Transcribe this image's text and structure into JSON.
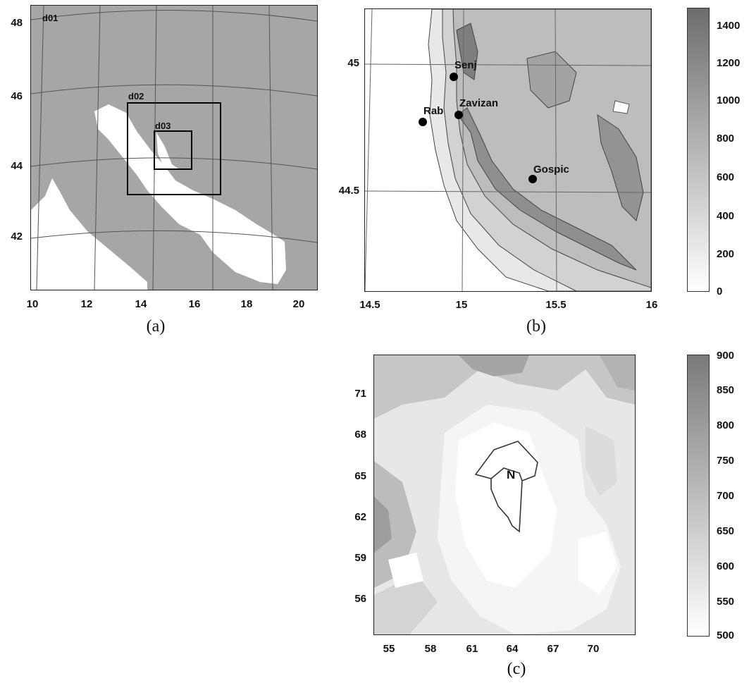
{
  "panel_a": {
    "caption": "(a)",
    "y_ticks": [
      "48",
      "46",
      "44",
      "42"
    ],
    "x_ticks": [
      "10",
      "12",
      "14",
      "16",
      "18",
      "20"
    ],
    "domains": {
      "outer": "d01",
      "middle": "d02",
      "inner": "d03"
    },
    "colors": {
      "land": "#a6a6a6",
      "sea": "#ffffff"
    }
  },
  "panel_b": {
    "caption": "(b)",
    "y_ticks": [
      "45",
      "44.5"
    ],
    "x_ticks": [
      "14.5",
      "15",
      "15.5",
      "16"
    ],
    "cities": [
      {
        "name": "Senj"
      },
      {
        "name": "Zavizan"
      },
      {
        "name": "Rab"
      },
      {
        "name": "Gospic"
      }
    ],
    "colorbar_ticks": [
      "1400",
      "1200",
      "1000",
      "800",
      "600",
      "400",
      "200",
      "0"
    ],
    "colorbar_colors": {
      "top": "#6d6d6d",
      "bottom": "#ffffff"
    }
  },
  "panel_c": {
    "caption": "(c)",
    "y_ticks": [
      "71",
      "68",
      "65",
      "62",
      "59",
      "56"
    ],
    "x_ticks": [
      "55",
      "58",
      "61",
      "64",
      "67",
      "70"
    ],
    "region_label": "N",
    "colorbar_ticks": [
      "900",
      "850",
      "800",
      "750",
      "700",
      "650",
      "600",
      "550",
      "500"
    ],
    "colorbar_colors": {
      "top": "#7a7a7a",
      "bottom": "#ffffff"
    }
  }
}
